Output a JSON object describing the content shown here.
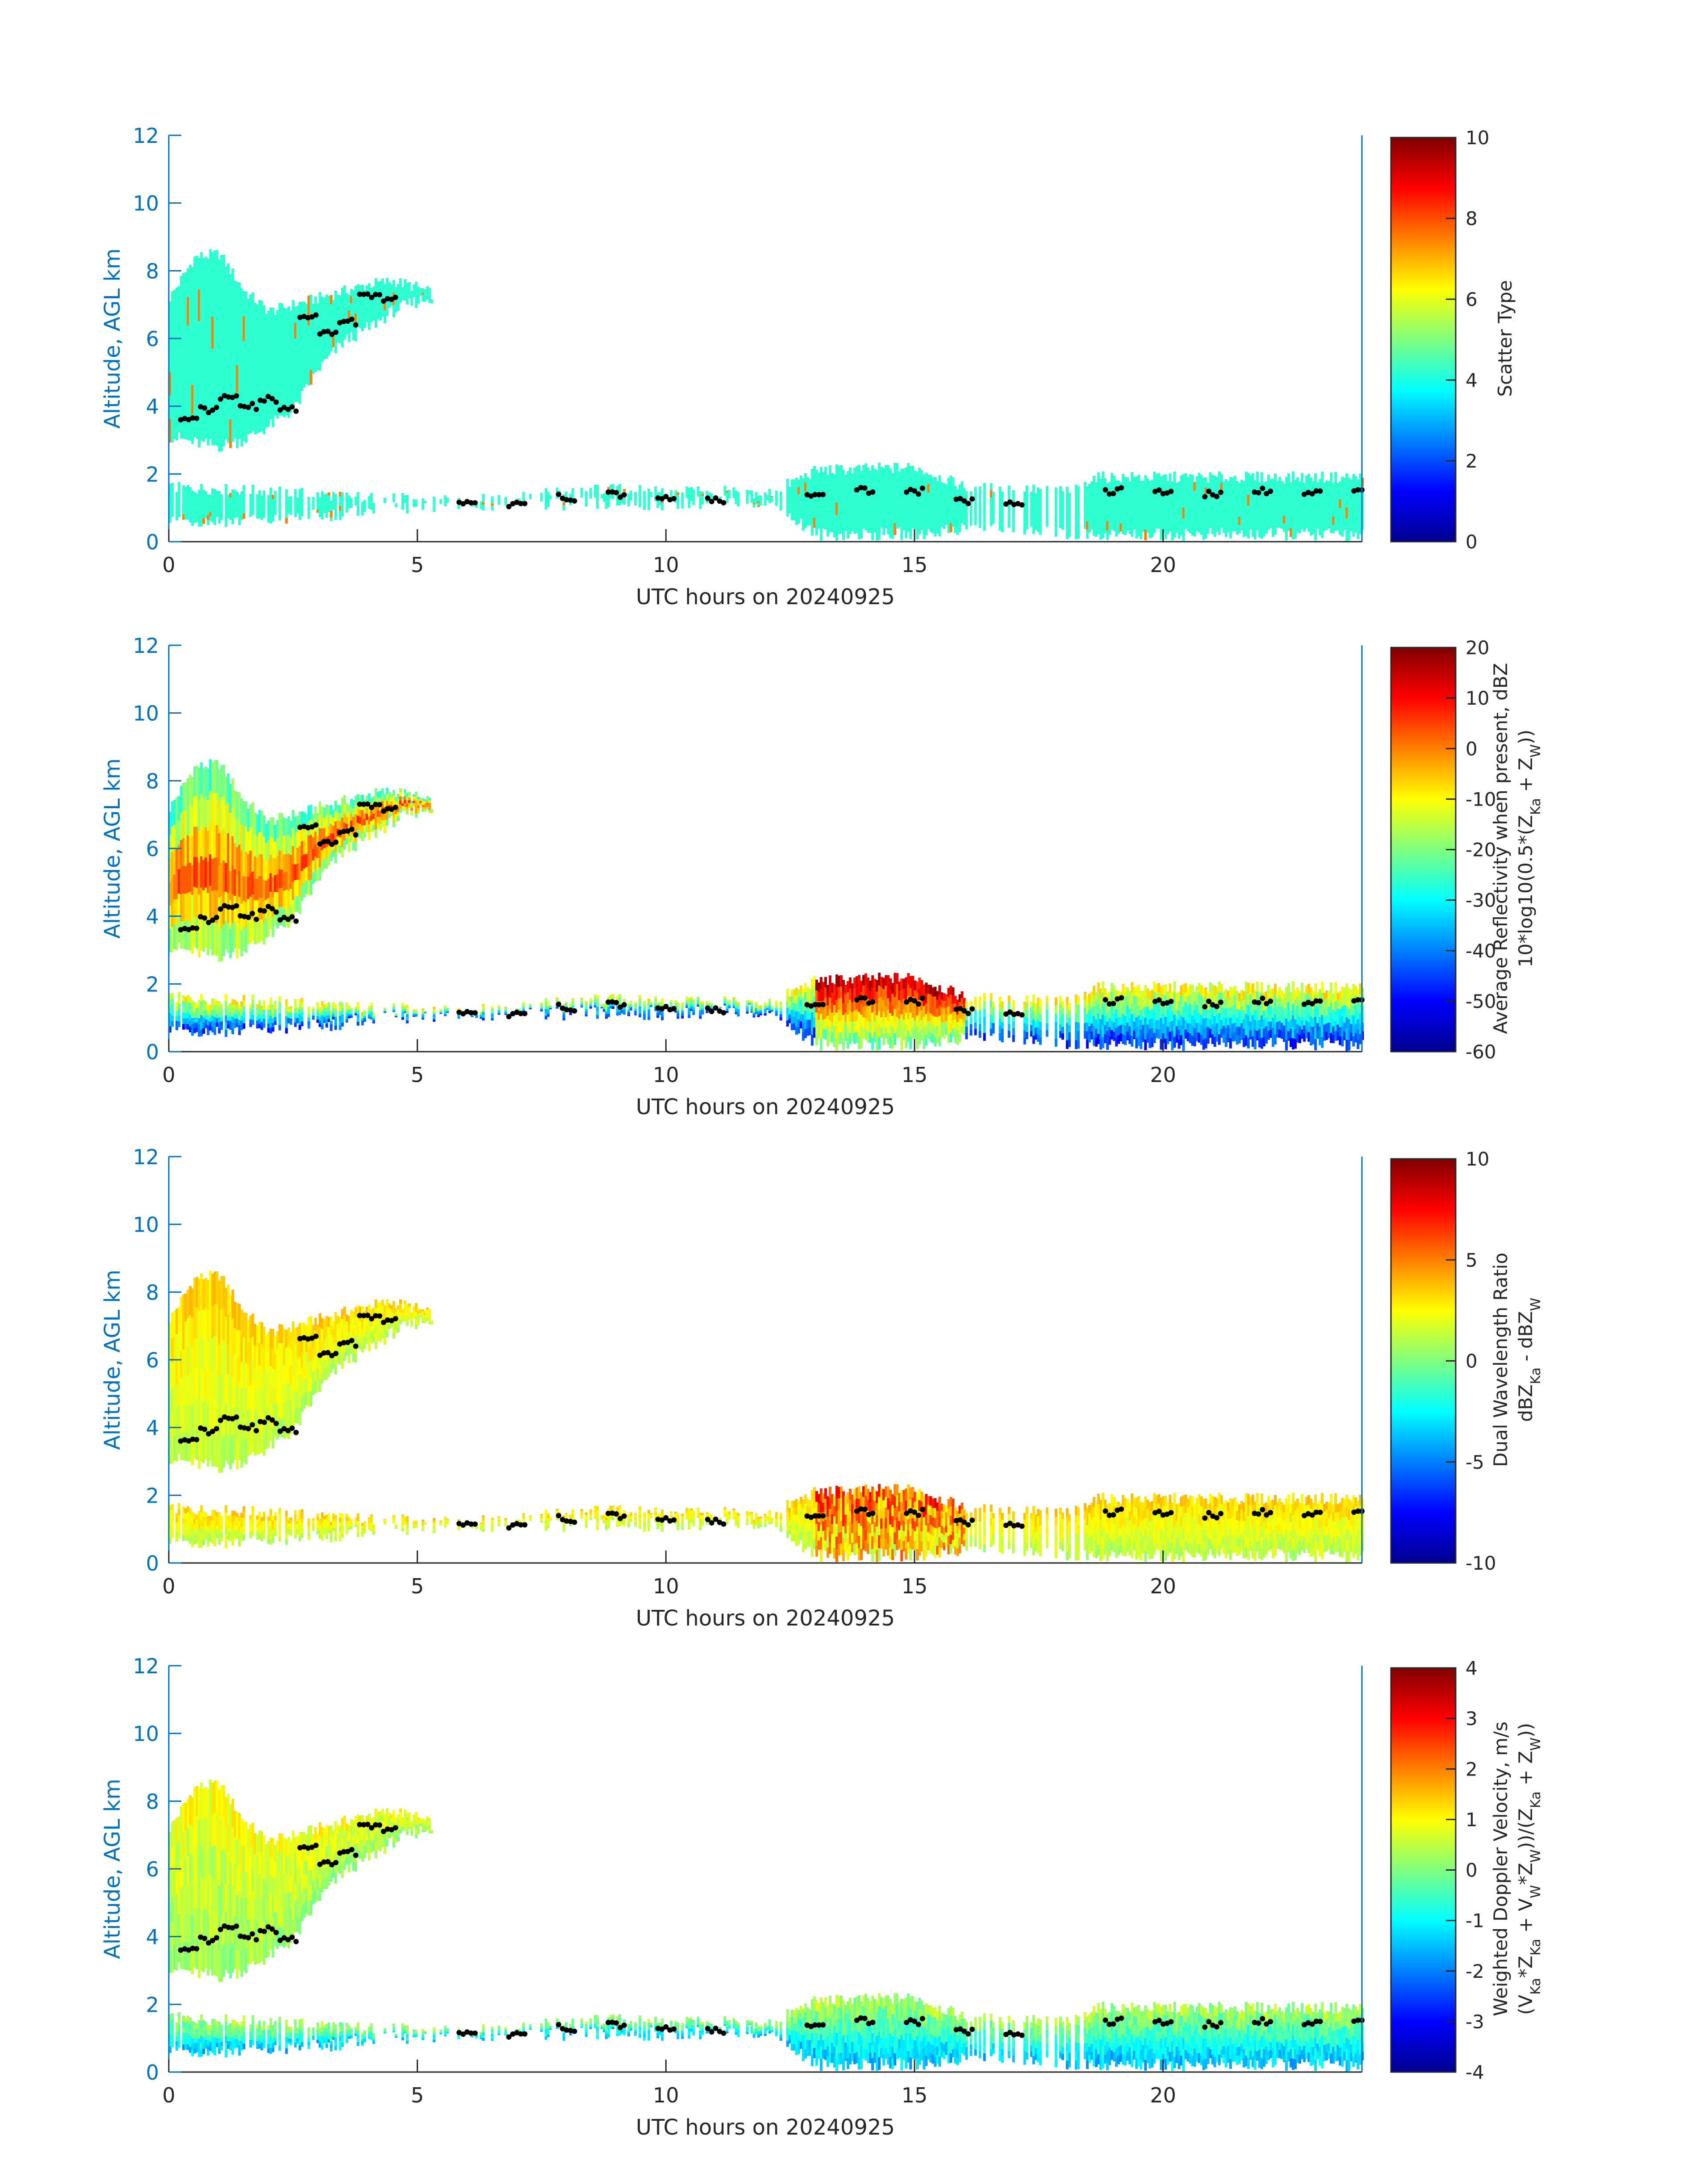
{
  "chart_data": [
    {
      "type": "heatmap",
      "title": "",
      "xlabel": "UTC hours on 20240925",
      "ylabel": "Altitude, AGL km",
      "xlim": [
        0,
        24
      ],
      "ylim": [
        0,
        12
      ],
      "xticks": [
        0,
        5,
        10,
        15,
        20
      ],
      "yticks": [
        0,
        2,
        4,
        6,
        8,
        10,
        12
      ],
      "colorbar": {
        "label": [
          "Scatter Type"
        ],
        "range": [
          0,
          10
        ],
        "ticks": [
          0,
          2,
          4,
          6,
          8,
          10
        ],
        "colormap": "jet"
      },
      "field_note_colors": {
        "dominant": "#33f5d8"
      }
    },
    {
      "type": "heatmap",
      "title": "",
      "xlabel": "UTC hours on 20240925",
      "ylabel": "Altitude, AGL km",
      "xlim": [
        0,
        24
      ],
      "ylim": [
        0,
        12
      ],
      "xticks": [
        0,
        5,
        10,
        15,
        20
      ],
      "yticks": [
        0,
        2,
        4,
        6,
        8,
        10,
        12
      ],
      "colorbar": {
        "label": [
          "Average Reflectivity when present, dBZ",
          "10*log10(0.5*(Z_Ka + Z_W))"
        ],
        "range": [
          -60,
          20
        ],
        "ticks": [
          -60,
          -50,
          -40,
          -30,
          -20,
          -10,
          0,
          10,
          20
        ],
        "colormap": "jet"
      }
    },
    {
      "type": "heatmap",
      "title": "",
      "xlabel": "UTC hours on 20240925",
      "ylabel": "Altitude, AGL km",
      "xlim": [
        0,
        24
      ],
      "ylim": [
        0,
        12
      ],
      "xticks": [
        0,
        5,
        10,
        15,
        20
      ],
      "yticks": [
        0,
        2,
        4,
        6,
        8,
        10,
        12
      ],
      "colorbar": {
        "label": [
          "Dual Wavelength Ratio",
          "dBZ_Ka - dBZ_W"
        ],
        "range": [
          -10,
          10
        ],
        "ticks": [
          -10,
          -5,
          0,
          5,
          10
        ],
        "colormap": "jet"
      }
    },
    {
      "type": "heatmap",
      "title": "",
      "xlabel": "UTC hours on 20240925",
      "ylabel": "Altitude, AGL km",
      "xlim": [
        0,
        24
      ],
      "ylim": [
        0,
        12
      ],
      "xticks": [
        0,
        5,
        10,
        15,
        20
      ],
      "yticks": [
        0,
        2,
        4,
        6,
        8,
        10,
        12
      ],
      "colorbar": {
        "label": [
          "Weighted Doppler Velocity, m/s",
          "(V_Ka*Z_Ka + V_W*Z_W))/(Z_Ka + Z_W))"
        ],
        "range": [
          -4,
          4
        ],
        "ticks": [
          -4,
          -3,
          -2,
          -1,
          0,
          1,
          2,
          3,
          4
        ],
        "colormap": "jet"
      }
    }
  ],
  "cloud_regions": {
    "upper_layer": {
      "x_hours": [
        0,
        0.5,
        1.0,
        1.5,
        2.0,
        2.5,
        3.0,
        3.5,
        4.0,
        4.5,
        5.0,
        5.3
      ],
      "top_km": [
        7.2,
        8.4,
        8.5,
        7.4,
        6.8,
        7.0,
        7.2,
        7.4,
        7.6,
        7.7,
        7.5,
        7.3
      ],
      "base_km": [
        3.0,
        2.8,
        2.7,
        2.9,
        3.3,
        3.8,
        5.0,
        5.8,
        6.2,
        6.7,
        7.0,
        7.1
      ]
    },
    "lower_layer": {
      "x_hours": [
        0,
        2,
        4,
        6,
        8,
        10,
        12,
        13,
        15,
        16,
        18,
        18.6,
        20,
        22,
        24
      ],
      "top_km": [
        1.6,
        1.5,
        1.3,
        1.2,
        1.5,
        1.6,
        1.4,
        2.1,
        2.2,
        1.6,
        1.5,
        1.9,
        1.9,
        1.9,
        1.9
      ],
      "base_km": [
        0.5,
        0.5,
        0.8,
        1.0,
        1.0,
        1.0,
        1.1,
        0.1,
        0.1,
        0.3,
        0.1,
        0.1,
        0.1,
        0.1,
        0.1
      ]
    },
    "cloud_base_dots": {
      "x_hours": [
        0.4,
        0.8,
        1.2,
        1.6,
        2.0,
        2.4,
        2.8,
        3.2,
        3.6,
        4.0,
        4.4,
        6.0,
        7.0,
        8.0,
        9.0,
        10.0,
        11.0,
        13.0,
        14.0,
        15.0,
        16.0,
        17.0,
        19.0,
        20.0,
        21.0,
        22.0,
        23.0,
        24.0
      ],
      "y_km": [
        3.7,
        3.9,
        4.3,
        4.0,
        4.2,
        3.9,
        6.6,
        6.2,
        6.5,
        7.3,
        7.2,
        1.1,
        1.1,
        1.3,
        1.4,
        1.3,
        1.2,
        1.4,
        1.5,
        1.5,
        1.2,
        1.1,
        1.5,
        1.5,
        1.4,
        1.5,
        1.4,
        1.6
      ]
    }
  }
}
